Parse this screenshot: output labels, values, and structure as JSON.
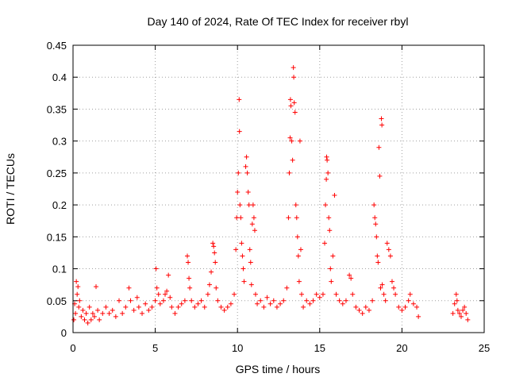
{
  "chart_data": {
    "type": "scatter",
    "title": "Day 140 of 2024, Rate Of TEC Index for receiver rbyl",
    "xlabel": "GPS time / hours",
    "ylabel": "ROTI / TECUs",
    "xlim": [
      0,
      25
    ],
    "ylim": [
      0,
      0.45
    ],
    "x_ticks": [
      0,
      5,
      10,
      15,
      20,
      25
    ],
    "y_ticks": [
      0,
      0.05,
      0.1,
      0.15,
      0.2,
      0.25,
      0.3,
      0.35,
      0.4,
      0.45
    ],
    "grid": true,
    "marker": "+",
    "color": "#ff0000",
    "series": [
      {
        "name": "ROTI",
        "points": [
          [
            0.05,
            0.02
          ],
          [
            0.1,
            0.045
          ],
          [
            0.15,
            0.03
          ],
          [
            0.2,
            0.08
          ],
          [
            0.25,
            0.06
          ],
          [
            0.3,
            0.072
          ],
          [
            0.35,
            0.04
          ],
          [
            0.4,
            0.05
          ],
          [
            0.5,
            0.025
          ],
          [
            0.6,
            0.035
          ],
          [
            0.7,
            0.02
          ],
          [
            0.8,
            0.03
          ],
          [
            0.9,
            0.015
          ],
          [
            1.0,
            0.04
          ],
          [
            1.1,
            0.02
          ],
          [
            1.2,
            0.03
          ],
          [
            1.3,
            0.025
          ],
          [
            1.4,
            0.072
          ],
          [
            1.5,
            0.035
          ],
          [
            1.6,
            0.02
          ],
          [
            1.8,
            0.03
          ],
          [
            2.0,
            0.04
          ],
          [
            2.2,
            0.03
          ],
          [
            2.4,
            0.035
          ],
          [
            2.6,
            0.025
          ],
          [
            2.8,
            0.05
          ],
          [
            3.0,
            0.03
          ],
          [
            3.2,
            0.04
          ],
          [
            3.4,
            0.07
          ],
          [
            3.5,
            0.05
          ],
          [
            3.7,
            0.035
          ],
          [
            3.9,
            0.055
          ],
          [
            4.0,
            0.04
          ],
          [
            4.2,
            0.03
          ],
          [
            4.4,
            0.045
          ],
          [
            4.6,
            0.035
          ],
          [
            4.8,
            0.04
          ],
          [
            5.0,
            0.05
          ],
          [
            5.05,
            0.1
          ],
          [
            5.1,
            0.07
          ],
          [
            5.2,
            0.06
          ],
          [
            5.3,
            0.045
          ],
          [
            5.5,
            0.05
          ],
          [
            5.6,
            0.06
          ],
          [
            5.7,
            0.065
          ],
          [
            5.8,
            0.09
          ],
          [
            5.9,
            0.055
          ],
          [
            6.0,
            0.04
          ],
          [
            6.2,
            0.03
          ],
          [
            6.4,
            0.04
          ],
          [
            6.6,
            0.045
          ],
          [
            6.8,
            0.05
          ],
          [
            6.95,
            0.12
          ],
          [
            7.0,
            0.11
          ],
          [
            7.05,
            0.085
          ],
          [
            7.1,
            0.07
          ],
          [
            7.2,
            0.05
          ],
          [
            7.4,
            0.04
          ],
          [
            7.6,
            0.045
          ],
          [
            7.8,
            0.05
          ],
          [
            8.0,
            0.04
          ],
          [
            8.2,
            0.06
          ],
          [
            8.3,
            0.075
          ],
          [
            8.4,
            0.095
          ],
          [
            8.5,
            0.14
          ],
          [
            8.55,
            0.135
          ],
          [
            8.6,
            0.125
          ],
          [
            8.65,
            0.11
          ],
          [
            8.7,
            0.07
          ],
          [
            8.8,
            0.05
          ],
          [
            9.0,
            0.04
          ],
          [
            9.2,
            0.035
          ],
          [
            9.4,
            0.04
          ],
          [
            9.6,
            0.045
          ],
          [
            9.8,
            0.06
          ],
          [
            9.9,
            0.13
          ],
          [
            9.95,
            0.18
          ],
          [
            10.0,
            0.22
          ],
          [
            10.05,
            0.25
          ],
          [
            10.1,
            0.365
          ],
          [
            10.12,
            0.315
          ],
          [
            10.15,
            0.2
          ],
          [
            10.2,
            0.18
          ],
          [
            10.25,
            0.14
          ],
          [
            10.3,
            0.12
          ],
          [
            10.35,
            0.1
          ],
          [
            10.4,
            0.08
          ],
          [
            10.5,
            0.26
          ],
          [
            10.55,
            0.275
          ],
          [
            10.6,
            0.25
          ],
          [
            10.65,
            0.22
          ],
          [
            10.7,
            0.2
          ],
          [
            10.75,
            0.13
          ],
          [
            10.8,
            0.11
          ],
          [
            10.85,
            0.075
          ],
          [
            10.9,
            0.17
          ],
          [
            10.95,
            0.2
          ],
          [
            11.0,
            0.18
          ],
          [
            11.05,
            0.16
          ],
          [
            11.1,
            0.06
          ],
          [
            11.2,
            0.045
          ],
          [
            11.4,
            0.05
          ],
          [
            11.6,
            0.04
          ],
          [
            11.8,
            0.055
          ],
          [
            12.0,
            0.045
          ],
          [
            12.2,
            0.05
          ],
          [
            12.4,
            0.04
          ],
          [
            12.6,
            0.045
          ],
          [
            12.8,
            0.05
          ],
          [
            13.0,
            0.07
          ],
          [
            13.1,
            0.18
          ],
          [
            13.15,
            0.25
          ],
          [
            13.2,
            0.305
          ],
          [
            13.22,
            0.365
          ],
          [
            13.25,
            0.355
          ],
          [
            13.3,
            0.3
          ],
          [
            13.35,
            0.27
          ],
          [
            13.4,
            0.415
          ],
          [
            13.42,
            0.4
          ],
          [
            13.45,
            0.36
          ],
          [
            13.5,
            0.345
          ],
          [
            13.55,
            0.2
          ],
          [
            13.6,
            0.18
          ],
          [
            13.65,
            0.15
          ],
          [
            13.7,
            0.12
          ],
          [
            13.75,
            0.08
          ],
          [
            13.8,
            0.3
          ],
          [
            13.85,
            0.13
          ],
          [
            13.9,
            0.06
          ],
          [
            14.0,
            0.04
          ],
          [
            14.2,
            0.05
          ],
          [
            14.4,
            0.045
          ],
          [
            14.6,
            0.05
          ],
          [
            14.8,
            0.06
          ],
          [
            15.0,
            0.055
          ],
          [
            15.2,
            0.06
          ],
          [
            15.3,
            0.14
          ],
          [
            15.35,
            0.2
          ],
          [
            15.4,
            0.24
          ],
          [
            15.42,
            0.275
          ],
          [
            15.45,
            0.27
          ],
          [
            15.5,
            0.25
          ],
          [
            15.55,
            0.18
          ],
          [
            15.6,
            0.16
          ],
          [
            15.65,
            0.1
          ],
          [
            15.7,
            0.08
          ],
          [
            15.8,
            0.12
          ],
          [
            15.9,
            0.215
          ],
          [
            16.0,
            0.06
          ],
          [
            16.2,
            0.05
          ],
          [
            16.4,
            0.045
          ],
          [
            16.6,
            0.05
          ],
          [
            16.8,
            0.09
          ],
          [
            16.9,
            0.085
          ],
          [
            17.0,
            0.06
          ],
          [
            17.2,
            0.04
          ],
          [
            17.4,
            0.035
          ],
          [
            17.6,
            0.03
          ],
          [
            17.8,
            0.04
          ],
          [
            18.0,
            0.035
          ],
          [
            18.2,
            0.05
          ],
          [
            18.3,
            0.2
          ],
          [
            18.35,
            0.18
          ],
          [
            18.4,
            0.17
          ],
          [
            18.45,
            0.15
          ],
          [
            18.5,
            0.12
          ],
          [
            18.55,
            0.11
          ],
          [
            18.6,
            0.29
          ],
          [
            18.65,
            0.245
          ],
          [
            18.7,
            0.07
          ],
          [
            18.75,
            0.335
          ],
          [
            18.78,
            0.325
          ],
          [
            18.8,
            0.075
          ],
          [
            18.9,
            0.06
          ],
          [
            19.0,
            0.05
          ],
          [
            19.1,
            0.14
          ],
          [
            19.2,
            0.13
          ],
          [
            19.3,
            0.12
          ],
          [
            19.4,
            0.08
          ],
          [
            19.5,
            0.07
          ],
          [
            19.6,
            0.06
          ],
          [
            19.8,
            0.04
          ],
          [
            20.0,
            0.035
          ],
          [
            20.2,
            0.04
          ],
          [
            20.4,
            0.05
          ],
          [
            20.5,
            0.06
          ],
          [
            20.7,
            0.045
          ],
          [
            20.9,
            0.04
          ],
          [
            21.0,
            0.025
          ],
          [
            23.1,
            0.03
          ],
          [
            23.2,
            0.045
          ],
          [
            23.3,
            0.06
          ],
          [
            23.35,
            0.05
          ],
          [
            23.4,
            0.035
          ],
          [
            23.5,
            0.03
          ],
          [
            23.6,
            0.025
          ],
          [
            23.7,
            0.035
          ],
          [
            23.8,
            0.04
          ],
          [
            23.9,
            0.03
          ],
          [
            24.0,
            0.02
          ]
        ]
      }
    ]
  }
}
